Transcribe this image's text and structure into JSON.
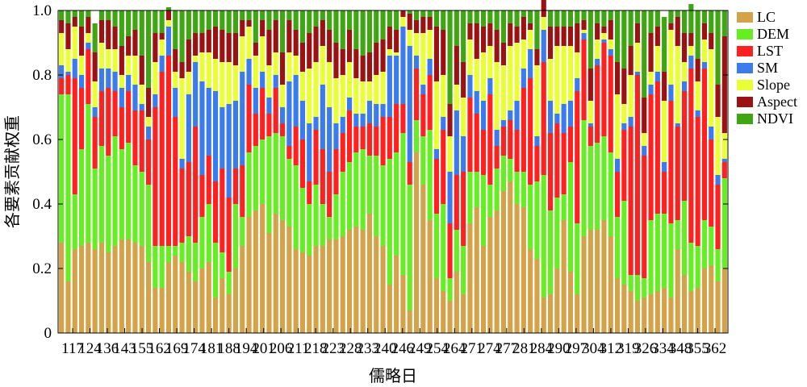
{
  "chart_data": {
    "type": "bar",
    "stacked": true,
    "normalized": true,
    "xlabel": "儒略日",
    "ylabel": "各要素贡献权重",
    "ylim": [
      0,
      1
    ],
    "yticks": [
      "0",
      "0.2",
      "0.4",
      "0.6",
      "0.8",
      "1.0"
    ],
    "xtick_labels": [
      "117",
      "124",
      "136",
      "143",
      "155",
      "162",
      "169",
      "174",
      "181",
      "188",
      "194",
      "201",
      "206",
      "211",
      "218",
      "223",
      "228",
      "233",
      "240",
      "246",
      "249",
      "254",
      "264",
      "271",
      "274",
      "277",
      "281",
      "284",
      "290",
      "297",
      "304",
      "312",
      "319",
      "326",
      "334",
      "348",
      "355",
      "362"
    ],
    "xtick_labels_shown": [
      "117",
      "124",
      "136",
      "143",
      "155",
      "162",
      "169",
      "174",
      "181",
      "188",
      "194",
      "201",
      "206",
      "211",
      "218",
      "223",
      "228",
      "233",
      "240",
      "246",
      "249",
      "254",
      "264",
      "271",
      "274",
      "277",
      "281",
      "284",
      "290",
      "297",
      "304",
      "312",
      "319",
      "326",
      "334",
      "348",
      "355",
      "362"
    ],
    "visible_xtick_labels": [
      "117",
      "124",
      "136",
      "143",
      "155",
      "162",
      "169",
      "174",
      "181",
      "188",
      "194",
      "201",
      "206",
      "211",
      "218",
      "223",
      "228",
      "233",
      "240",
      "246",
      "249",
      "254",
      "264",
      "271",
      "274",
      "277",
      "281",
      "284",
      "290",
      "297",
      "304",
      "312",
      "319",
      "326",
      "334",
      "348",
      "355",
      "362"
    ],
    "printed_xticks": [
      "117",
      "124",
      "136",
      "143",
      "155",
      "162",
      "169",
      "174",
      "181",
      "188",
      "194",
      "201",
      "206",
      "211",
      "218",
      "223",
      "228",
      "233",
      "240",
      "246",
      "249",
      "254",
      "264",
      "271",
      "274",
      "277",
      "281",
      "284",
      "290",
      "297",
      "304",
      "312",
      "319",
      "326",
      "334",
      "348",
      "355",
      "362"
    ],
    "legend_position": "right",
    "grid": false,
    "bar_count": 100,
    "series": [
      {
        "name": "LC",
        "color": "#D4A349",
        "values": [
          0.28,
          0.16,
          0.26,
          0.27,
          0.28,
          0.26,
          0.28,
          0.25,
          0.27,
          0.29,
          0.29,
          0.28,
          0.27,
          0.22,
          0.14,
          0.14,
          0.22,
          0.24,
          0.22,
          0.19,
          0.16,
          0.2,
          0.22,
          0.11,
          0.17,
          0.12,
          0.2,
          0.27,
          0.36,
          0.38,
          0.4,
          0.31,
          0.37,
          0.35,
          0.33,
          0.26,
          0.25,
          0.24,
          0.27,
          0.27,
          0.29,
          0.29,
          0.3,
          0.32,
          0.33,
          0.32,
          0.37,
          0.3,
          0.27,
          0.15,
          0.24,
          0.18,
          0.07,
          0.56,
          0.46,
          0.35,
          0.17,
          0.13,
          0.1,
          0.19,
          0.12,
          0.34,
          0.39,
          0.27,
          0.36,
          0.38,
          0.44,
          0.47,
          0.4,
          0.39,
          0.26,
          0.23,
          0.11,
          0.12,
          0.2,
          0.35,
          0.19,
          0.12,
          0.3,
          0.32,
          0.32,
          0.35,
          0.3,
          0.17,
          0.15,
          0.13,
          0.1,
          0.11,
          0.12,
          0.13,
          0.14,
          0.11,
          0.26,
          0.18,
          0.13,
          0.14,
          0.2,
          0.21,
          0.16,
          0.2
        ]
      },
      {
        "name": "DEM",
        "color": "#66EE22",
        "values": [
          0.46,
          0.58,
          0.17,
          0.3,
          0.43,
          0.25,
          0.3,
          0.3,
          0.34,
          0.28,
          0.3,
          0.24,
          0.23,
          0.24,
          0.13,
          0.13,
          0.05,
          0.03,
          0.06,
          0.11,
          0.12,
          0.16,
          0.18,
          0.17,
          0.08,
          0.07,
          0.2,
          0.09,
          0.2,
          0.2,
          0.2,
          0.3,
          0.25,
          0.26,
          0.21,
          0.26,
          0.2,
          0.16,
          0.19,
          0.13,
          0.07,
          0.14,
          0.2,
          0.21,
          0.23,
          0.25,
          0.18,
          0.25,
          0.25,
          0.39,
          0.32,
          0.44,
          0.39,
          0.1,
          0.15,
          0.28,
          0.2,
          0.27,
          0.07,
          0.13,
          0.15,
          0.16,
          0.11,
          0.22,
          0.1,
          0.13,
          0.11,
          0.07,
          0.1,
          0.11,
          0.2,
          0.24,
          0.38,
          0.26,
          0.22,
          0.08,
          0.34,
          0.22,
          0.36,
          0.26,
          0.27,
          0.26,
          0.26,
          0.19,
          0.26,
          0.05,
          0.08,
          0.06,
          0.23,
          0.24,
          0.23,
          0.23,
          0.09,
          0.23,
          0.15,
          0.13,
          0.15,
          0.12,
          0.1,
          0.28
        ]
      },
      {
        "name": "LST",
        "color": "#FF2020",
        "values": [
          0.05,
          0.06,
          0.36,
          0.19,
          0.17,
          0.16,
          0.17,
          0.21,
          0.14,
          0.13,
          0.16,
          0.17,
          0.19,
          0.14,
          0.43,
          0.54,
          0.59,
          0.4,
          0.23,
          0.23,
          0.36,
          0.13,
          0.15,
          0.19,
          0.26,
          0.23,
          0.11,
          0.16,
          0.21,
          0.1,
          0.16,
          0.07,
          0.14,
          0.04,
          0.04,
          0.12,
          0.15,
          0.07,
          0.17,
          0.17,
          0.14,
          0.14,
          0.12,
          0.16,
          0.08,
          0.07,
          0.1,
          0.09,
          0.15,
          0.13,
          0.15,
          0.09,
          0.07,
          0.16,
          0.13,
          0.17,
          0.17,
          0.23,
          0.17,
          0.17,
          0.23,
          0.23,
          0.18,
          0.14,
          0.28,
          0.07,
          0.09,
          0.12,
          0.13,
          0.26,
          0.33,
          0.11,
          0.35,
          0.24,
          0.23,
          0.19,
          0.11,
          0.41,
          0.25,
          0.06,
          0.24,
          0.29,
          0.3,
          0.14,
          0.22,
          0.46,
          0.62,
          0.38,
          0.39,
          0.41,
          0.13,
          0.38,
          0.29,
          0.34,
          0.54,
          0.4,
          0.47,
          0.27,
          0.2,
          0.05
        ]
      },
      {
        "name": "SM",
        "color": "#3B7BEB",
        "values": [
          0.04,
          0.01,
          0.06,
          0.04,
          0.02,
          0.03,
          0.07,
          0.06,
          0.06,
          0.06,
          0.05,
          0.08,
          0.02,
          0.04,
          0.04,
          0.05,
          0.09,
          0.09,
          0.03,
          0.21,
          0.2,
          0.29,
          0.21,
          0.28,
          0.19,
          0.29,
          0.21,
          0.29,
          0.08,
          0.08,
          0.05,
          0.05,
          0.04,
          0.05,
          0.2,
          0.16,
          0.12,
          0.18,
          0.04,
          0.2,
          0.2,
          0.08,
          0.05,
          0.04,
          0.04,
          0.04,
          0.07,
          0.07,
          0.04,
          0.19,
          0.15,
          0.24,
          0.36,
          0.04,
          0.03,
          0.05,
          0.03,
          0.04,
          0.16,
          0.2,
          0.11,
          0.07,
          0.07,
          0.09,
          0.05,
          0.05,
          0.02,
          0.03,
          0.09,
          0.06,
          0.09,
          0.03,
          0.1,
          0.1,
          0.03,
          0.09,
          0.08,
          0.04,
          0.02,
          0.01,
          0.02,
          0.01,
          0.02,
          0.04,
          0.02,
          0.03,
          0.01,
          0.03,
          0.03,
          0.03,
          0.03,
          0.05,
          0.01,
          0.03,
          0.04,
          0.02,
          0.02,
          0.04,
          0.03,
          0.01
        ]
      },
      {
        "name": "Slope",
        "color": "#EAFE35",
        "values": [
          0.1,
          0.07,
          0.1,
          0.06,
          0.03,
          0.08,
          0.08,
          0.06,
          0.07,
          0.04,
          0.06,
          0.09,
          0.06,
          0.03,
          0.1,
          0.05,
          0.02,
          0.05,
          0.25,
          0.07,
          0.02,
          0.09,
          0.11,
          0.1,
          0.14,
          0.13,
          0.11,
          0.11,
          0.1,
          0.1,
          0.11,
          0.1,
          0.07,
          0.07,
          0.09,
          0.06,
          0.09,
          0.17,
          0.17,
          0.12,
          0.14,
          0.14,
          0.13,
          0.11,
          0.11,
          0.1,
          0.06,
          0.09,
          0.1,
          0.02,
          0.01,
          0.03,
          0.05,
          0.07,
          0.16,
          0.09,
          0.21,
          0.13,
          0.11,
          0.08,
          0.12,
          0.11,
          0.1,
          0.15,
          0.1,
          0.21,
          0.17,
          0.2,
          0.18,
          0.09,
          0.06,
          0.22,
          0.04,
          0.13,
          0.21,
          0.18,
          0.17,
          0.08,
          0.01,
          0.07,
          0.06,
          0.02,
          0.03,
          0.2,
          0.06,
          0.13,
          0.09,
          0.04,
          0.04,
          0.08,
          0.19,
          0.17,
          0.24,
          0.06,
          0.03,
          0.09,
          0.07,
          0.24,
          0.18,
          0.08
        ]
      },
      {
        "name": "Aspect",
        "color": "#9A1212",
        "values": [
          0.04,
          0.08,
          0.03,
          0.09,
          0.05,
          0.09,
          0.07,
          0.09,
          0.07,
          0.09,
          0.06,
          0.08,
          0.09,
          0.09,
          0.09,
          0.02,
          0.03,
          0.07,
          0.05,
          0.1,
          0.07,
          0.06,
          0.07,
          0.1,
          0.1,
          0.09,
          0.1,
          0.05,
          0.02,
          0.04,
          0.05,
          0.11,
          0.1,
          0.1,
          0.1,
          0.08,
          0.09,
          0.11,
          0.11,
          0.08,
          0.1,
          0.11,
          0.08,
          0.1,
          0.09,
          0.08,
          0.09,
          0.1,
          0.1,
          0.07,
          0.07,
          0.02,
          0.05,
          0.04,
          0.05,
          0.04,
          0.17,
          0.14,
          0.1,
          0.12,
          0.11,
          0.05,
          0.11,
          0.08,
          0.07,
          0.1,
          0.07,
          0.07,
          0.05,
          0.07,
          0.02,
          0.05,
          0.1,
          0.1,
          0.06,
          0.06,
          0.06,
          0.09,
          0.03,
          0.1,
          0.05,
          0.02,
          0.06,
          0.1,
          0.11,
          0.09,
          0.06,
          0.11,
          0.12,
          0.06,
          0.09,
          0.02,
          0.09,
          0.09,
          0.04,
          0.07,
          0.05,
          0.05,
          0.1,
          0.3
        ]
      },
      {
        "name": "NDVI",
        "color": "#3FA513",
        "values": [
          0.03,
          0.04,
          0.02,
          0.05,
          0.02,
          0.09,
          0.03,
          0.03,
          0.05,
          0.11,
          0.08,
          0.06,
          0.14,
          0.24,
          0.07,
          0.07,
          0.01,
          0.12,
          0.16,
          0.09,
          0.07,
          0.07,
          0.06,
          0.05,
          0.06,
          0.07,
          0.07,
          0.03,
          0.03,
          0.1,
          0.03,
          0.06,
          0.03,
          0.13,
          0.03,
          0.06,
          0.1,
          0.07,
          0.05,
          0.03,
          0.06,
          0.1,
          0.12,
          0.06,
          0.12,
          0.14,
          0.13,
          0.1,
          0.09,
          0.05,
          0.06,
          0.0,
          0.01,
          0.03,
          0.02,
          0.02,
          0.05,
          0.06,
          0.29,
          0.11,
          0.16,
          0.04,
          0.04,
          0.05,
          0.04,
          0.06,
          0.1,
          0.04,
          0.05,
          0.02,
          0.04,
          0.12,
          0.02,
          0.05,
          0.05,
          0.05,
          0.05,
          0.04,
          0.03,
          0.18,
          0.04,
          0.05,
          0.03,
          0.16,
          0.18,
          0.11,
          0.04,
          0.27,
          0.07,
          0.05,
          0.17,
          0.04,
          0.02,
          0.07,
          0.09,
          0.15,
          0.04,
          0.07,
          0.23,
          0.08
        ]
      }
    ]
  }
}
